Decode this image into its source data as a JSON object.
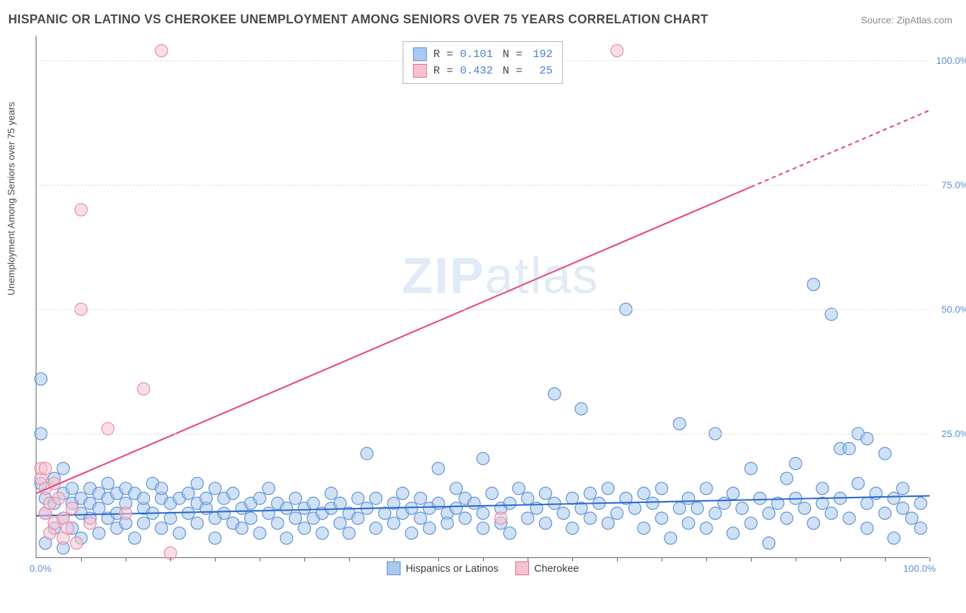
{
  "header": {
    "title": "HISPANIC OR LATINO VS CHEROKEE UNEMPLOYMENT AMONG SENIORS OVER 75 YEARS CORRELATION CHART",
    "source_prefix": "Source: ",
    "source_link": "ZipAtlas.com"
  },
  "axes": {
    "ylabel": "Unemployment Among Seniors over 75 years",
    "xlim": [
      0,
      100
    ],
    "ylim": [
      0,
      105
    ],
    "yticks": [
      {
        "v": 25,
        "label": "25.0%"
      },
      {
        "v": 50,
        "label": "50.0%"
      },
      {
        "v": 75,
        "label": "75.0%"
      },
      {
        "v": 100,
        "label": "100.0%"
      }
    ],
    "x_origin_label": "0.0%",
    "x_end_label": "100.0%",
    "xtick_values": [
      5,
      10,
      15,
      20,
      25,
      30,
      35,
      40,
      45,
      50,
      55,
      60,
      65,
      70,
      75,
      80,
      85,
      90,
      95,
      100
    ],
    "grid_color": "#dddddd",
    "axis_color": "#606060",
    "tick_label_color": "#5b8fd6"
  },
  "legend_top": {
    "rows": [
      {
        "swatch_fill": "#a9c9ef",
        "swatch_border": "#5a8fd0",
        "r_label": "R =",
        "r_value": "0.101",
        "n_label": "N =",
        "n_value": "192"
      },
      {
        "swatch_fill": "#f6c2cf",
        "swatch_border": "#e06a8a",
        "r_label": "R =",
        "r_value": "0.432",
        "n_label": "N =",
        "n_value": " 25"
      }
    ]
  },
  "legend_bottom": {
    "items": [
      {
        "swatch_fill": "#a9c9ef",
        "swatch_border": "#5a8fd0",
        "label": "Hispanics or Latinos"
      },
      {
        "swatch_fill": "#f6c2cf",
        "swatch_border": "#e06a8a",
        "label": "Cherokee"
      }
    ]
  },
  "watermark": {
    "text_bold": "ZIP",
    "text_rest": "atlas"
  },
  "chart": {
    "type": "scatter-with-regression",
    "background_color": "#ffffff",
    "marker_radius": 9,
    "marker_opacity": 0.55,
    "series": [
      {
        "name": "Hispanics or Latinos",
        "marker_fill": "#a9c9ef",
        "marker_stroke": "#5a8fd0",
        "trend": {
          "x1": 0,
          "y1": 8.5,
          "x2": 100,
          "y2": 12.5,
          "color": "#2d6bd1",
          "width": 2.2,
          "dash_from_x": null
        },
        "points": [
          {
            "x": 0.5,
            "y": 36
          },
          {
            "x": 0.5,
            "y": 25
          },
          {
            "x": 0.5,
            "y": 15
          },
          {
            "x": 1,
            "y": 9
          },
          {
            "x": 1,
            "y": 12
          },
          {
            "x": 1,
            "y": 3
          },
          {
            "x": 2,
            "y": 11
          },
          {
            "x": 2,
            "y": 16
          },
          {
            "x": 2,
            "y": 6
          },
          {
            "x": 3,
            "y": 13
          },
          {
            "x": 3,
            "y": 8
          },
          {
            "x": 3,
            "y": 18
          },
          {
            "x": 3,
            "y": 2
          },
          {
            "x": 4,
            "y": 11
          },
          {
            "x": 4,
            "y": 14
          },
          {
            "x": 4,
            "y": 6
          },
          {
            "x": 5,
            "y": 9
          },
          {
            "x": 5,
            "y": 12
          },
          {
            "x": 5,
            "y": 4
          },
          {
            "x": 6,
            "y": 14
          },
          {
            "x": 6,
            "y": 8
          },
          {
            "x": 6,
            "y": 11
          },
          {
            "x": 7,
            "y": 10
          },
          {
            "x": 7,
            "y": 13
          },
          {
            "x": 7,
            "y": 5
          },
          {
            "x": 8,
            "y": 12
          },
          {
            "x": 8,
            "y": 8
          },
          {
            "x": 8,
            "y": 15
          },
          {
            "x": 9,
            "y": 9
          },
          {
            "x": 9,
            "y": 6
          },
          {
            "x": 9,
            "y": 13
          },
          {
            "x": 10,
            "y": 11
          },
          {
            "x": 10,
            "y": 14
          },
          {
            "x": 10,
            "y": 7
          },
          {
            "x": 11,
            "y": 13
          },
          {
            "x": 11,
            "y": 4
          },
          {
            "x": 12,
            "y": 10
          },
          {
            "x": 12,
            "y": 12
          },
          {
            "x": 12,
            "y": 7
          },
          {
            "x": 13,
            "y": 15
          },
          {
            "x": 13,
            "y": 9
          },
          {
            "x": 14,
            "y": 12
          },
          {
            "x": 14,
            "y": 6
          },
          {
            "x": 14,
            "y": 14
          },
          {
            "x": 15,
            "y": 11
          },
          {
            "x": 15,
            "y": 8
          },
          {
            "x": 16,
            "y": 12
          },
          {
            "x": 16,
            "y": 5
          },
          {
            "x": 17,
            "y": 9
          },
          {
            "x": 17,
            "y": 13
          },
          {
            "x": 18,
            "y": 11
          },
          {
            "x": 18,
            "y": 7
          },
          {
            "x": 18,
            "y": 15
          },
          {
            "x": 19,
            "y": 10
          },
          {
            "x": 19,
            "y": 12
          },
          {
            "x": 20,
            "y": 14
          },
          {
            "x": 20,
            "y": 8
          },
          {
            "x": 20,
            "y": 4
          },
          {
            "x": 21,
            "y": 12
          },
          {
            "x": 21,
            "y": 9
          },
          {
            "x": 22,
            "y": 7
          },
          {
            "x": 22,
            "y": 13
          },
          {
            "x": 23,
            "y": 10
          },
          {
            "x": 23,
            "y": 6
          },
          {
            "x": 24,
            "y": 11
          },
          {
            "x": 24,
            "y": 8
          },
          {
            "x": 25,
            "y": 12
          },
          {
            "x": 25,
            "y": 5
          },
          {
            "x": 26,
            "y": 9
          },
          {
            "x": 26,
            "y": 14
          },
          {
            "x": 27,
            "y": 11
          },
          {
            "x": 27,
            "y": 7
          },
          {
            "x": 28,
            "y": 10
          },
          {
            "x": 28,
            "y": 4
          },
          {
            "x": 29,
            "y": 12
          },
          {
            "x": 29,
            "y": 8
          },
          {
            "x": 30,
            "y": 10
          },
          {
            "x": 30,
            "y": 6
          },
          {
            "x": 31,
            "y": 11
          },
          {
            "x": 31,
            "y": 8
          },
          {
            "x": 32,
            "y": 9
          },
          {
            "x": 32,
            "y": 5
          },
          {
            "x": 33,
            "y": 10
          },
          {
            "x": 33,
            "y": 13
          },
          {
            "x": 34,
            "y": 7
          },
          {
            "x": 34,
            "y": 11
          },
          {
            "x": 35,
            "y": 9
          },
          {
            "x": 35,
            "y": 5
          },
          {
            "x": 36,
            "y": 12
          },
          {
            "x": 36,
            "y": 8
          },
          {
            "x": 37,
            "y": 21
          },
          {
            "x": 37,
            "y": 10
          },
          {
            "x": 38,
            "y": 6
          },
          {
            "x": 38,
            "y": 12
          },
          {
            "x": 39,
            "y": 9
          },
          {
            "x": 40,
            "y": 11
          },
          {
            "x": 40,
            "y": 7
          },
          {
            "x": 41,
            "y": 13
          },
          {
            "x": 41,
            "y": 9
          },
          {
            "x": 42,
            "y": 10
          },
          {
            "x": 42,
            "y": 5
          },
          {
            "x": 43,
            "y": 12
          },
          {
            "x": 43,
            "y": 8
          },
          {
            "x": 44,
            "y": 10
          },
          {
            "x": 44,
            "y": 6
          },
          {
            "x": 45,
            "y": 18
          },
          {
            "x": 45,
            "y": 11
          },
          {
            "x": 46,
            "y": 9
          },
          {
            "x": 46,
            "y": 7
          },
          {
            "x": 47,
            "y": 10
          },
          {
            "x": 47,
            "y": 14
          },
          {
            "x": 48,
            "y": 8
          },
          {
            "x": 48,
            "y": 12
          },
          {
            "x": 49,
            "y": 11
          },
          {
            "x": 50,
            "y": 20
          },
          {
            "x": 50,
            "y": 9
          },
          {
            "x": 50,
            "y": 6
          },
          {
            "x": 51,
            "y": 13
          },
          {
            "x": 52,
            "y": 10
          },
          {
            "x": 52,
            "y": 7
          },
          {
            "x": 53,
            "y": 11
          },
          {
            "x": 53,
            "y": 5
          },
          {
            "x": 54,
            "y": 14
          },
          {
            "x": 55,
            "y": 12
          },
          {
            "x": 55,
            "y": 8
          },
          {
            "x": 56,
            "y": 10
          },
          {
            "x": 57,
            "y": 7
          },
          {
            "x": 57,
            "y": 13
          },
          {
            "x": 58,
            "y": 11
          },
          {
            "x": 58,
            "y": 33
          },
          {
            "x": 59,
            "y": 9
          },
          {
            "x": 60,
            "y": 12
          },
          {
            "x": 60,
            "y": 6
          },
          {
            "x": 61,
            "y": 30
          },
          {
            "x": 61,
            "y": 10
          },
          {
            "x": 62,
            "y": 8
          },
          {
            "x": 62,
            "y": 13
          },
          {
            "x": 63,
            "y": 11
          },
          {
            "x": 64,
            "y": 7
          },
          {
            "x": 64,
            "y": 14
          },
          {
            "x": 65,
            "y": 9
          },
          {
            "x": 66,
            "y": 12
          },
          {
            "x": 66,
            "y": 50
          },
          {
            "x": 67,
            "y": 10
          },
          {
            "x": 68,
            "y": 6
          },
          {
            "x": 68,
            "y": 13
          },
          {
            "x": 69,
            "y": 11
          },
          {
            "x": 70,
            "y": 8
          },
          {
            "x": 70,
            "y": 14
          },
          {
            "x": 71,
            "y": 4
          },
          {
            "x": 72,
            "y": 10
          },
          {
            "x": 72,
            "y": 27
          },
          {
            "x": 73,
            "y": 7
          },
          {
            "x": 73,
            "y": 12
          },
          {
            "x": 74,
            "y": 10
          },
          {
            "x": 75,
            "y": 6
          },
          {
            "x": 75,
            "y": 14
          },
          {
            "x": 76,
            "y": 25
          },
          {
            "x": 76,
            "y": 9
          },
          {
            "x": 77,
            "y": 11
          },
          {
            "x": 78,
            "y": 5
          },
          {
            "x": 78,
            "y": 13
          },
          {
            "x": 79,
            "y": 10
          },
          {
            "x": 80,
            "y": 7
          },
          {
            "x": 80,
            "y": 18
          },
          {
            "x": 81,
            "y": 12
          },
          {
            "x": 82,
            "y": 9
          },
          {
            "x": 82,
            "y": 3
          },
          {
            "x": 83,
            "y": 11
          },
          {
            "x": 84,
            "y": 16
          },
          {
            "x": 84,
            "y": 8
          },
          {
            "x": 85,
            "y": 19
          },
          {
            "x": 85,
            "y": 12
          },
          {
            "x": 86,
            "y": 10
          },
          {
            "x": 87,
            "y": 55
          },
          {
            "x": 87,
            "y": 7
          },
          {
            "x": 88,
            "y": 14
          },
          {
            "x": 88,
            "y": 11
          },
          {
            "x": 89,
            "y": 49
          },
          {
            "x": 89,
            "y": 9
          },
          {
            "x": 90,
            "y": 22
          },
          {
            "x": 90,
            "y": 12
          },
          {
            "x": 91,
            "y": 22
          },
          {
            "x": 91,
            "y": 8
          },
          {
            "x": 92,
            "y": 25
          },
          {
            "x": 92,
            "y": 15
          },
          {
            "x": 93,
            "y": 24
          },
          {
            "x": 93,
            "y": 11
          },
          {
            "x": 93,
            "y": 6
          },
          {
            "x": 94,
            "y": 13
          },
          {
            "x": 95,
            "y": 21
          },
          {
            "x": 95,
            "y": 9
          },
          {
            "x": 96,
            "y": 12
          },
          {
            "x": 96,
            "y": 4
          },
          {
            "x": 97,
            "y": 10
          },
          {
            "x": 97,
            "y": 14
          },
          {
            "x": 98,
            "y": 8
          },
          {
            "x": 99,
            "y": 6
          },
          {
            "x": 99,
            "y": 11
          }
        ]
      },
      {
        "name": "Cherokee",
        "marker_fill": "#f6c2cf",
        "marker_stroke": "#e889a3",
        "trend": {
          "x1": 0,
          "y1": 13,
          "x2": 100,
          "y2": 90,
          "color": "#e94a7a",
          "width": 2.2,
          "dash_from_x": 80
        },
        "points": [
          {
            "x": 0.5,
            "y": 16
          },
          {
            "x": 0.5,
            "y": 18
          },
          {
            "x": 1,
            "y": 9
          },
          {
            "x": 1,
            "y": 14
          },
          {
            "x": 1,
            "y": 18
          },
          {
            "x": 1.5,
            "y": 5
          },
          {
            "x": 1.5,
            "y": 11
          },
          {
            "x": 2,
            "y": 7
          },
          {
            "x": 2,
            "y": 15
          },
          {
            "x": 2.5,
            "y": 12
          },
          {
            "x": 3,
            "y": 8
          },
          {
            "x": 3,
            "y": 4
          },
          {
            "x": 3.5,
            "y": 6
          },
          {
            "x": 4,
            "y": 10
          },
          {
            "x": 4.5,
            "y": 3
          },
          {
            "x": 5,
            "y": 70
          },
          {
            "x": 5,
            "y": 50
          },
          {
            "x": 6,
            "y": 7
          },
          {
            "x": 8,
            "y": 26
          },
          {
            "x": 10,
            "y": 9
          },
          {
            "x": 12,
            "y": 34
          },
          {
            "x": 14,
            "y": 102
          },
          {
            "x": 15,
            "y": 1
          },
          {
            "x": 52,
            "y": 8
          },
          {
            "x": 65,
            "y": 102
          }
        ]
      }
    ]
  }
}
